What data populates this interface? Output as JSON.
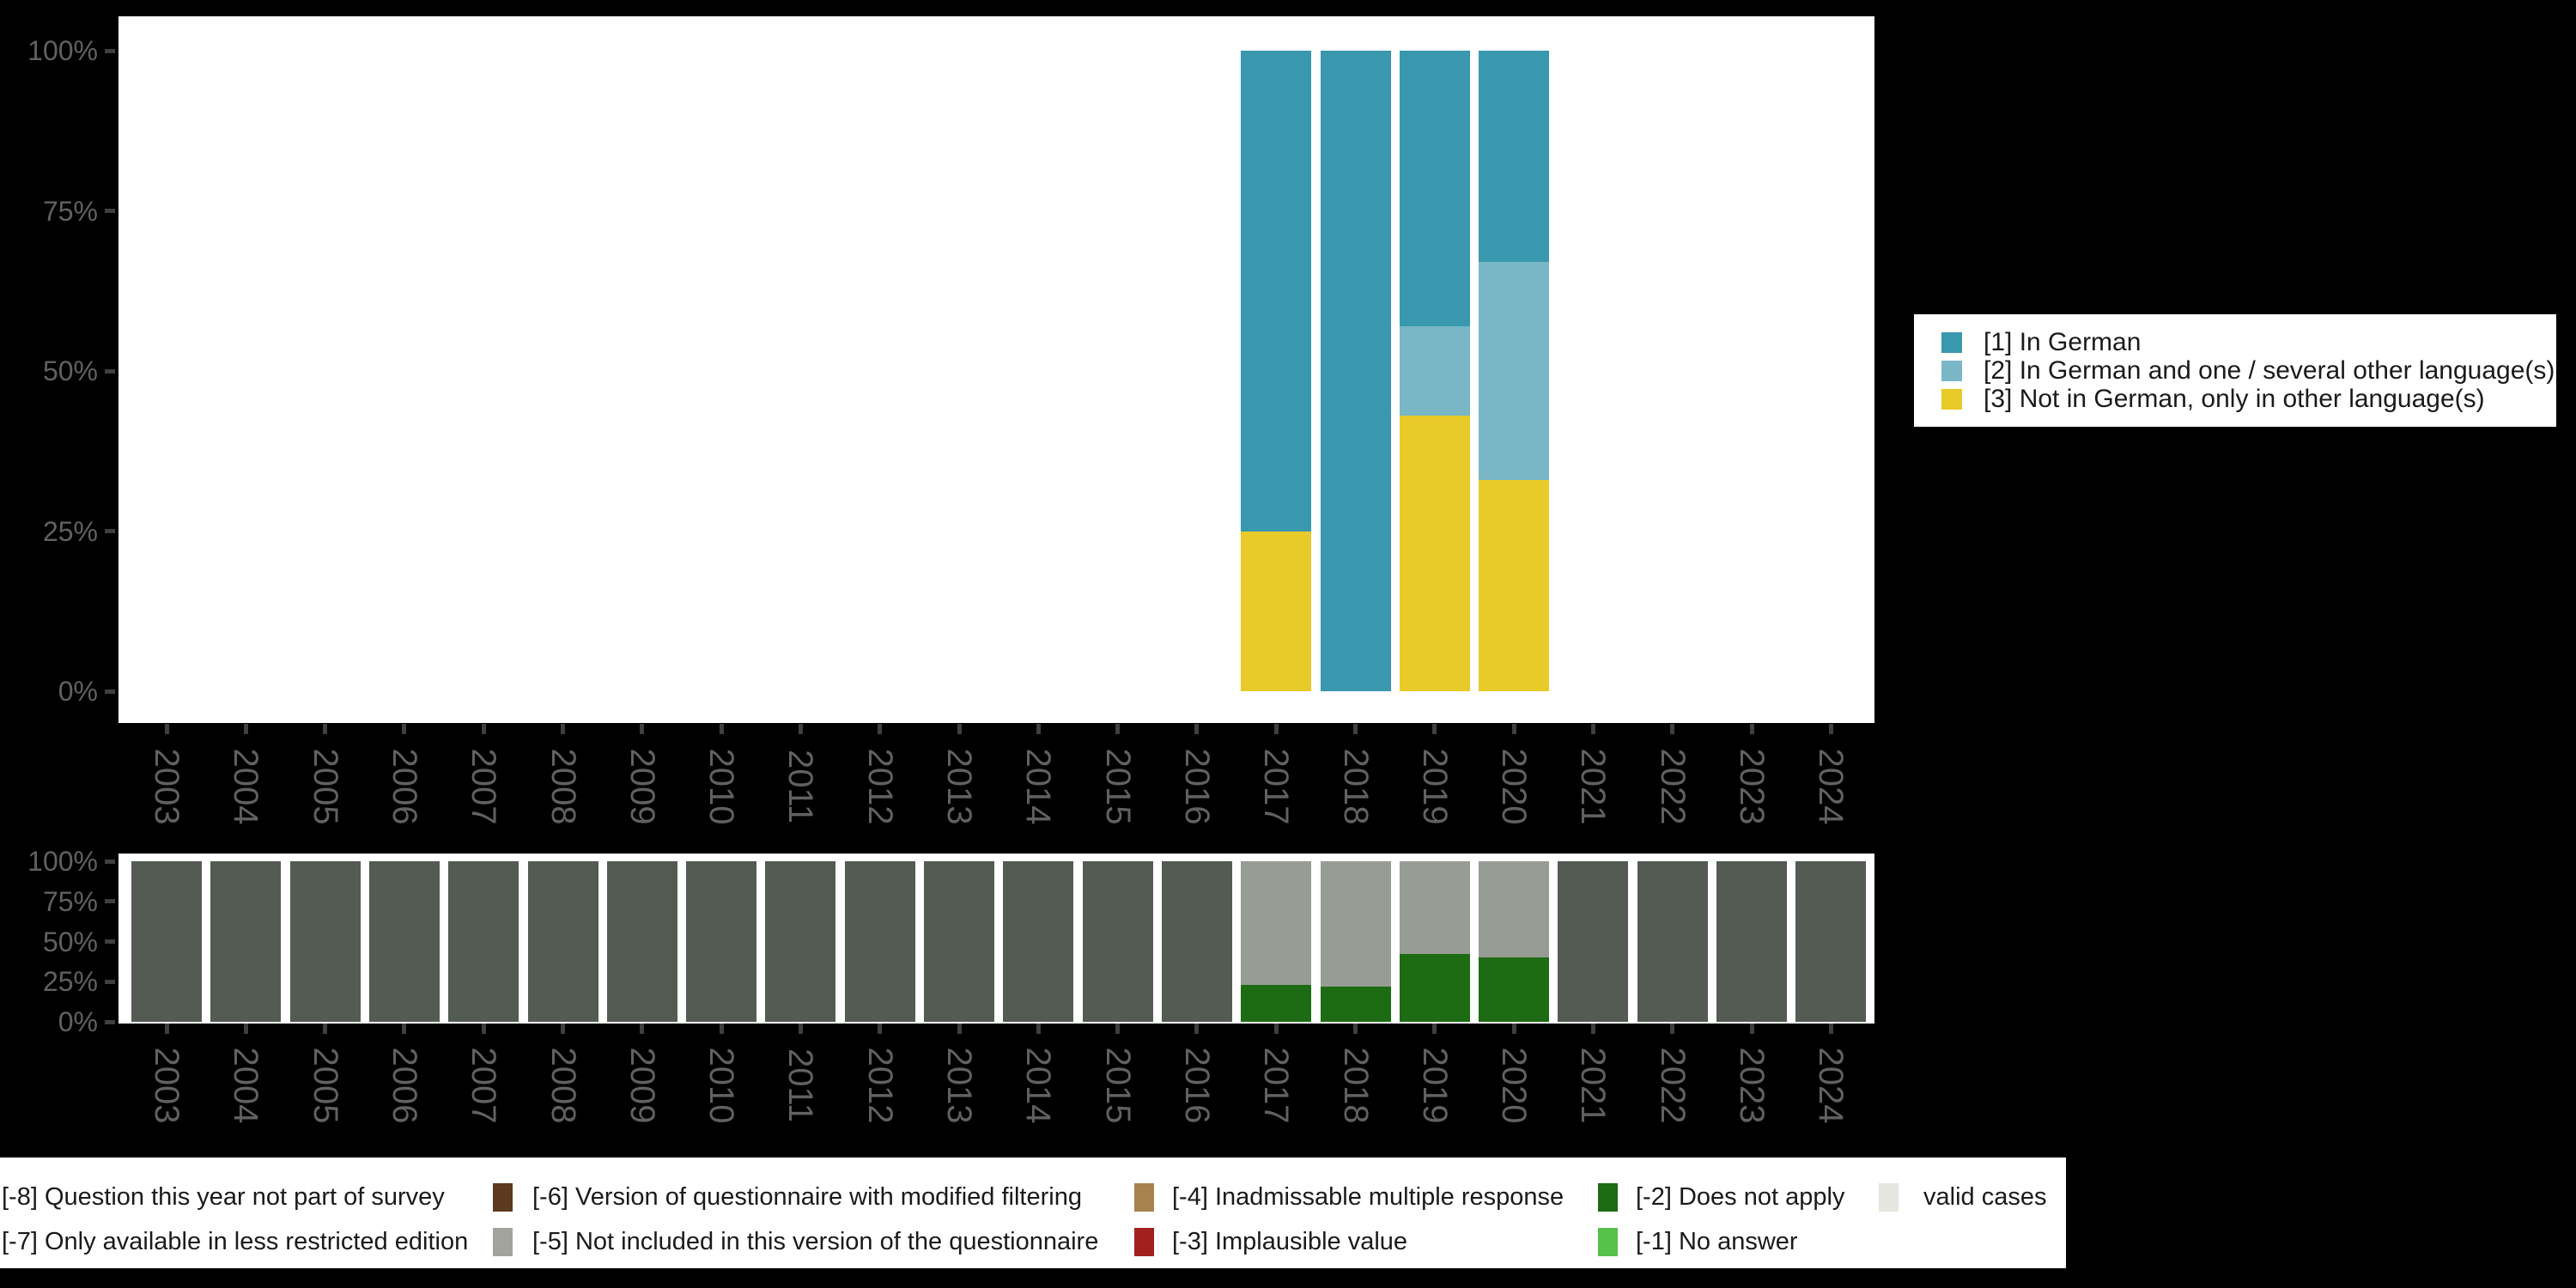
{
  "figure": {
    "background": "#000000",
    "plot_background": "#ffffff",
    "axis_label_color": "#616161",
    "tick_mark_color": "#3f3f3f"
  },
  "years": [
    "2003",
    "2004",
    "2005",
    "2006",
    "2007",
    "2008",
    "2009",
    "2010",
    "2011",
    "2012",
    "2013",
    "2014",
    "2015",
    "2016",
    "2017",
    "2018",
    "2019",
    "2020",
    "2021",
    "2022",
    "2023",
    "2024"
  ],
  "y_axis_ticks": [
    {
      "label": "100%",
      "pct": 100
    },
    {
      "label": "75%",
      "pct": 75
    },
    {
      "label": "50%",
      "pct": 50
    },
    {
      "label": "25%",
      "pct": 25
    },
    {
      "label": "0%",
      "pct": 0
    }
  ],
  "value_colors": {
    "v1": "#3998ae",
    "v2": "#79b7c7",
    "v3": "#e8ca28"
  },
  "missing_colors": {
    "m8": "#535b53",
    "m7": "#979d94",
    "m6": "#5c3a1d",
    "m5": "#a3a39e",
    "m4": "#a5824e",
    "m3": "#a32020",
    "m2": "#1d6b12",
    "m1": "#56c24a",
    "valid": "#e3e7df"
  },
  "legend_values": {
    "items": [
      {
        "label": "[1] In German",
        "color_key": "v1"
      },
      {
        "label": "[2] In German and one / several other language(s)",
        "color_key": "v2"
      },
      {
        "label": "[3] Not in German, only in other language(s)",
        "color_key": "v3"
      }
    ]
  },
  "legend_missing": {
    "rows": [
      [
        {
          "label": "[-8] Question this year not part of survey",
          "color_key": "m8",
          "swatch_visible": false
        },
        {
          "label": "[-6] Version of questionnaire with modified filtering",
          "color_key": "m6",
          "swatch_visible": true
        },
        {
          "label": "[-4] Inadmissable multiple response",
          "color_key": "m4",
          "swatch_visible": true
        },
        {
          "label": "[-2] Does not apply",
          "color_key": "m2",
          "swatch_visible": true
        },
        {
          "label": "valid cases",
          "color_key": "valid",
          "swatch_visible": true
        }
      ],
      [
        {
          "label": "[-7] Only available in less restricted edition",
          "color_key": "m7",
          "swatch_visible": false
        },
        {
          "label": "[-5] Not included in this version of the questionnaire",
          "color_key": "m5",
          "swatch_visible": true
        },
        {
          "label": "[-3] Implausible value",
          "color_key": "m3",
          "swatch_visible": true
        },
        {
          "label": "[-1] No answer",
          "color_key": "m1",
          "swatch_visible": true
        }
      ]
    ]
  },
  "main_bars": [
    {
      "year": "2017",
      "segments": [
        {
          "color_key": "v3",
          "pct": 25
        },
        {
          "color_key": "v1",
          "pct": 75
        }
      ]
    },
    {
      "year": "2018",
      "segments": [
        {
          "color_key": "v1",
          "pct": 100
        }
      ]
    },
    {
      "year": "2019",
      "segments": [
        {
          "color_key": "v3",
          "pct": 43
        },
        {
          "color_key": "v2",
          "pct": 14
        },
        {
          "color_key": "v1",
          "pct": 43
        }
      ]
    },
    {
      "year": "2020",
      "segments": [
        {
          "color_key": "v3",
          "pct": 33
        },
        {
          "color_key": "v2",
          "pct": 34
        },
        {
          "color_key": "v1",
          "pct": 33
        }
      ]
    }
  ],
  "missing_bars": [
    {
      "year": "2003",
      "segments": [
        {
          "color_key": "m8",
          "pct": 100
        }
      ]
    },
    {
      "year": "2004",
      "segments": [
        {
          "color_key": "m8",
          "pct": 100
        }
      ]
    },
    {
      "year": "2005",
      "segments": [
        {
          "color_key": "m8",
          "pct": 100
        }
      ]
    },
    {
      "year": "2006",
      "segments": [
        {
          "color_key": "m8",
          "pct": 100
        }
      ]
    },
    {
      "year": "2007",
      "segments": [
        {
          "color_key": "m8",
          "pct": 100
        }
      ]
    },
    {
      "year": "2008",
      "segments": [
        {
          "color_key": "m8",
          "pct": 100
        }
      ]
    },
    {
      "year": "2009",
      "segments": [
        {
          "color_key": "m8",
          "pct": 100
        }
      ]
    },
    {
      "year": "2010",
      "segments": [
        {
          "color_key": "m8",
          "pct": 100
        }
      ]
    },
    {
      "year": "2011",
      "segments": [
        {
          "color_key": "m8",
          "pct": 100
        }
      ]
    },
    {
      "year": "2012",
      "segments": [
        {
          "color_key": "m8",
          "pct": 100
        }
      ]
    },
    {
      "year": "2013",
      "segments": [
        {
          "color_key": "m8",
          "pct": 100
        }
      ]
    },
    {
      "year": "2014",
      "segments": [
        {
          "color_key": "m8",
          "pct": 100
        }
      ]
    },
    {
      "year": "2015",
      "segments": [
        {
          "color_key": "m8",
          "pct": 100
        }
      ]
    },
    {
      "year": "2016",
      "segments": [
        {
          "color_key": "m8",
          "pct": 100
        }
      ]
    },
    {
      "year": "2017",
      "segments": [
        {
          "color_key": "m2",
          "pct": 23
        },
        {
          "color_key": "m7",
          "pct": 77
        }
      ]
    },
    {
      "year": "2018",
      "segments": [
        {
          "color_key": "m2",
          "pct": 22
        },
        {
          "color_key": "m7",
          "pct": 78
        }
      ]
    },
    {
      "year": "2019",
      "segments": [
        {
          "color_key": "m2",
          "pct": 42
        },
        {
          "color_key": "m7",
          "pct": 58
        }
      ]
    },
    {
      "year": "2020",
      "segments": [
        {
          "color_key": "m2",
          "pct": 40
        },
        {
          "color_key": "m7",
          "pct": 60
        }
      ]
    },
    {
      "year": "2021",
      "segments": [
        {
          "color_key": "m8",
          "pct": 100
        }
      ]
    },
    {
      "year": "2022",
      "segments": [
        {
          "color_key": "m8",
          "pct": 100
        }
      ]
    },
    {
      "year": "2023",
      "segments": [
        {
          "color_key": "m8",
          "pct": 100
        }
      ]
    },
    {
      "year": "2024",
      "segments": [
        {
          "color_key": "m8",
          "pct": 100
        }
      ]
    }
  ],
  "chart_data": [
    {
      "type": "bar",
      "subtype": "stacked-percentage",
      "title": "",
      "xlabel": "",
      "ylabel": "",
      "ylim": [
        0,
        100
      ],
      "y_ticks": [
        "0%",
        "25%",
        "50%",
        "75%",
        "100%"
      ],
      "grid": false,
      "legend_position": "right",
      "categories": [
        "2003",
        "2004",
        "2005",
        "2006",
        "2007",
        "2008",
        "2009",
        "2010",
        "2011",
        "2012",
        "2013",
        "2014",
        "2015",
        "2016",
        "2017",
        "2018",
        "2019",
        "2020",
        "2021",
        "2022",
        "2023",
        "2024"
      ],
      "series": [
        {
          "name": "[1] In German",
          "color": "#3998ae",
          "values": [
            0,
            0,
            0,
            0,
            0,
            0,
            0,
            0,
            0,
            0,
            0,
            0,
            0,
            0,
            75,
            100,
            43,
            33,
            0,
            0,
            0,
            0
          ]
        },
        {
          "name": "[2] In German and one / several other language(s)",
          "color": "#79b7c7",
          "values": [
            0,
            0,
            0,
            0,
            0,
            0,
            0,
            0,
            0,
            0,
            0,
            0,
            0,
            0,
            0,
            0,
            14,
            34,
            0,
            0,
            0,
            0
          ]
        },
        {
          "name": "[3] Not in German, only in other language(s)",
          "color": "#e8ca28",
          "values": [
            0,
            0,
            0,
            0,
            0,
            0,
            0,
            0,
            0,
            0,
            0,
            0,
            0,
            0,
            25,
            0,
            43,
            33,
            0,
            0,
            0,
            0
          ]
        }
      ]
    },
    {
      "type": "bar",
      "subtype": "stacked-percentage",
      "title": "",
      "xlabel": "",
      "ylabel": "",
      "ylim": [
        0,
        100
      ],
      "y_ticks": [
        "0%",
        "25%",
        "50%",
        "75%",
        "100%"
      ],
      "grid": false,
      "legend_position": "bottom",
      "categories": [
        "2003",
        "2004",
        "2005",
        "2006",
        "2007",
        "2008",
        "2009",
        "2010",
        "2011",
        "2012",
        "2013",
        "2014",
        "2015",
        "2016",
        "2017",
        "2018",
        "2019",
        "2020",
        "2021",
        "2022",
        "2023",
        "2024"
      ],
      "series": [
        {
          "name": "[-8] Question this year not part of survey",
          "color": "#535b53",
          "values": [
            100,
            100,
            100,
            100,
            100,
            100,
            100,
            100,
            100,
            100,
            100,
            100,
            100,
            100,
            0,
            0,
            0,
            0,
            100,
            100,
            100,
            100
          ]
        },
        {
          "name": "[-7] Only available in less restricted edition",
          "color": "#979d94",
          "values": [
            0,
            0,
            0,
            0,
            0,
            0,
            0,
            0,
            0,
            0,
            0,
            0,
            0,
            0,
            77,
            78,
            58,
            60,
            0,
            0,
            0,
            0
          ]
        },
        {
          "name": "[-2] Does not apply",
          "color": "#1d6b12",
          "values": [
            0,
            0,
            0,
            0,
            0,
            0,
            0,
            0,
            0,
            0,
            0,
            0,
            0,
            0,
            23,
            22,
            42,
            40,
            0,
            0,
            0,
            0
          ]
        }
      ]
    }
  ]
}
